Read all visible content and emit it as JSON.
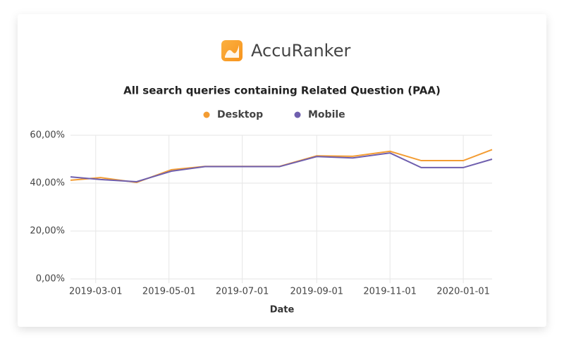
{
  "brand": "AccuRanker",
  "chart_data": {
    "type": "line",
    "title": "All search queries containing Related Question (PAA)",
    "x_label": "Date",
    "x": [
      "2019-02-08",
      "2019-03-05",
      "2019-04-04",
      "2019-05-03",
      "2019-05-31",
      "2019-07-01",
      "2019-08-01",
      "2019-09-01",
      "2019-10-01",
      "2019-11-01",
      "2019-11-27",
      "2020-01-01",
      "2020-01-25"
    ],
    "xlim": [
      "2019-02-08",
      "2020-01-25"
    ],
    "xticks": [
      "2019-03-01",
      "2019-05-01",
      "2019-07-01",
      "2019-09-01",
      "2019-11-01",
      "2020-01-01"
    ],
    "ylim": [
      0,
      60
    ],
    "yticks": [
      {
        "value": 0,
        "label": "0,00%"
      },
      {
        "value": 20,
        "label": "20,00%"
      },
      {
        "value": 40,
        "label": "40,00%"
      },
      {
        "value": 60,
        "label": "60,00%"
      }
    ],
    "grid": true,
    "series": [
      {
        "name": "Desktop",
        "color": "#f39c32",
        "values": [
          41.2,
          42.3,
          40.3,
          45.6,
          47.0,
          47.0,
          47.0,
          51.4,
          51.2,
          53.3,
          49.4,
          49.4,
          54.0
        ]
      },
      {
        "name": "Mobile",
        "color": "#6f5fae",
        "values": [
          42.6,
          41.5,
          40.6,
          45.0,
          46.9,
          46.9,
          46.9,
          51.1,
          50.5,
          52.6,
          46.5,
          46.5,
          50.0
        ]
      }
    ]
  }
}
